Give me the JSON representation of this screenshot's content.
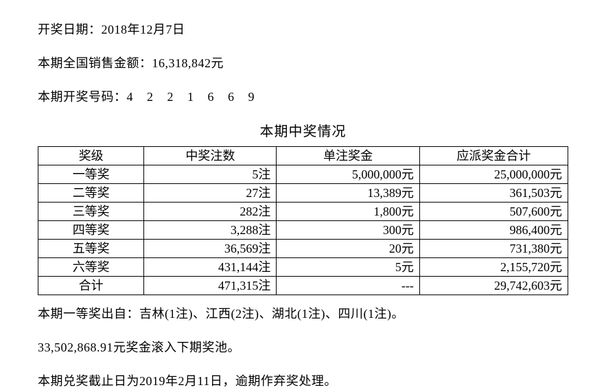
{
  "header": {
    "date_label": "开奖日期：",
    "date_value": "2018年12月7日",
    "sales_label": "本期全国销售金额：",
    "sales_value": "16,318,842元",
    "numbers_label": "本期开奖号码：",
    "numbers_value": "4 2 2 1 6 6 9"
  },
  "table": {
    "title": "本期中奖情况",
    "columns": [
      "奖级",
      "中奖注数",
      "单注奖金",
      "应派奖金合计"
    ],
    "rows": [
      [
        "一等奖",
        "5注",
        "5,000,000元",
        "25,000,000元"
      ],
      [
        "二等奖",
        "27注",
        "13,389元",
        "361,503元"
      ],
      [
        "三等奖",
        "282注",
        "1,800元",
        "507,600元"
      ],
      [
        "四等奖",
        "3,288注",
        "300元",
        "986,400元"
      ],
      [
        "五等奖",
        "36,569注",
        "20元",
        "731,380元"
      ],
      [
        "六等奖",
        "431,144注",
        "5元",
        "2,155,720元"
      ],
      [
        "合计",
        "471,315注",
        "---",
        "29,742,603元"
      ]
    ],
    "border_color": "#000000",
    "background_color": "#ffffff",
    "text_color": "#000000",
    "header_fontsize": 18,
    "cell_fontsize": 18,
    "col_align": [
      "center",
      "right",
      "right",
      "right"
    ]
  },
  "footer": {
    "line1": "本期一等奖出自：吉林(1注)、江西(2注)、湖北(1注)、四川(1注)。",
    "line2": "33,502,868.91元奖金滚入下期奖池。",
    "line3": "本期兑奖截止日为2019年2月11日，逾期作弃奖处理。"
  }
}
